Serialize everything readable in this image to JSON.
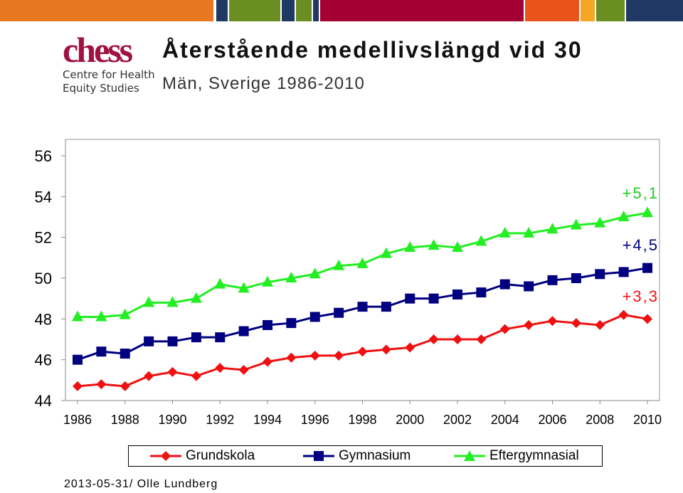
{
  "header": {
    "bar_colors": [
      "#e87722",
      "#1f3864",
      "#6b8e23",
      "#a50034",
      "#e8541a",
      "#f5a623"
    ],
    "logo": {
      "mark": "chess",
      "line1": "Centre for Health",
      "line2": "Equity Studies"
    },
    "title": "Återstående medellivslängd vid 30",
    "subtitle": "Män, Sverige 1986-2010"
  },
  "chart_data": {
    "type": "line",
    "x": [
      1986,
      1987,
      1988,
      1989,
      1990,
      1991,
      1992,
      1993,
      1994,
      1995,
      1996,
      1997,
      1998,
      1999,
      2000,
      2001,
      2002,
      2003,
      2004,
      2005,
      2006,
      2007,
      2008,
      2009,
      2010
    ],
    "xticks": [
      "1986",
      "1988",
      "1990",
      "1992",
      "1994",
      "1996",
      "1998",
      "2000",
      "2002",
      "2004",
      "2006",
      "2008",
      "2010"
    ],
    "yticks": [
      "44",
      "46",
      "48",
      "50",
      "52",
      "54",
      "56"
    ],
    "ylim": [
      44,
      56
    ],
    "xlim": [
      1986,
      2010
    ],
    "grid": false,
    "legend_position": "bottom",
    "series": [
      {
        "name": "Grundskola",
        "color": "#ee1111",
        "marker": "diamond",
        "values": [
          44.7,
          44.8,
          44.7,
          45.2,
          45.4,
          45.2,
          45.6,
          45.5,
          45.9,
          46.1,
          46.2,
          46.2,
          46.4,
          46.5,
          46.6,
          47.0,
          47.0,
          47.0,
          47.5,
          47.7,
          47.9,
          47.8,
          47.7,
          48.2,
          48.0
        ]
      },
      {
        "name": "Gymnasium",
        "color": "#000080",
        "marker": "square",
        "values": [
          46.0,
          46.4,
          46.3,
          46.9,
          46.9,
          47.1,
          47.1,
          47.4,
          47.7,
          47.8,
          48.1,
          48.3,
          48.6,
          48.6,
          49.0,
          49.0,
          49.2,
          49.3,
          49.7,
          49.6,
          49.9,
          50.0,
          50.2,
          50.3,
          50.5
        ]
      },
      {
        "name": "Eftergymnasial",
        "color": "#22ee22",
        "marker": "triangle",
        "values": [
          48.1,
          48.1,
          48.2,
          48.8,
          48.8,
          49.0,
          49.7,
          49.5,
          49.8,
          50.0,
          50.2,
          50.6,
          50.7,
          51.2,
          51.5,
          51.6,
          51.5,
          51.8,
          52.2,
          52.2,
          52.4,
          52.6,
          52.7,
          53.0,
          53.2
        ]
      }
    ],
    "annotations": [
      {
        "text": "+5,1",
        "color": "#22cc22"
      },
      {
        "text": "+4,5",
        "color": "#000080"
      },
      {
        "text": "+3,3",
        "color": "#ee1111"
      }
    ]
  },
  "footer": {
    "text": "2013-05-31/ Olle Lundberg"
  }
}
